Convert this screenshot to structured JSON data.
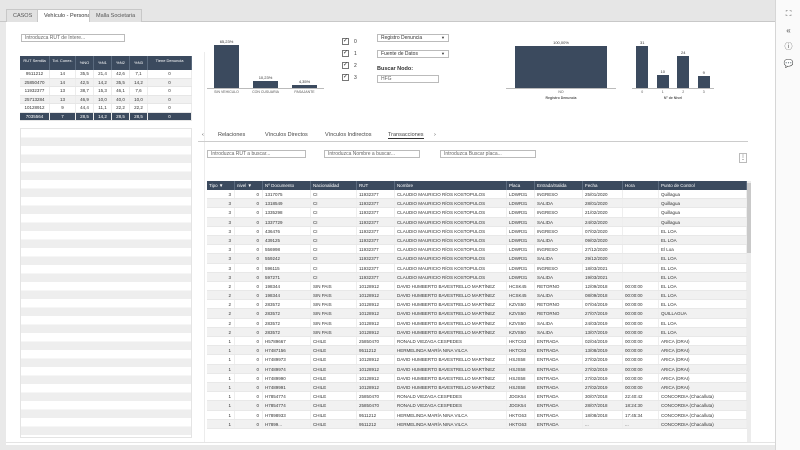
{
  "tabs": [
    {
      "label": "CASOS",
      "active": false
    },
    {
      "label": "Vehículo - Persona",
      "active": true
    },
    {
      "label": "Malla Societaria",
      "active": false
    }
  ],
  "rail_icons": [
    "expand-icon",
    "chevron-left-icon",
    "info-icon",
    "comment-icon"
  ],
  "rut_input_placeholder": "Introduzca RUT de Intere...",
  "left_table": {
    "headers": [
      "RUT Semilla",
      "Tot. Conex.",
      "%NO",
      "%N1",
      "%N2",
      "%N3",
      "Tiene Denuncia"
    ],
    "rows": [
      [
        "9511212",
        "14",
        "35,5",
        "21,4",
        "42,6",
        "7,1",
        "0"
      ],
      [
        "25850470",
        "14",
        "42,5",
        "14,2",
        "35,5",
        "14,2",
        "0"
      ],
      [
        "11932377",
        "13",
        "38,7",
        "15,3",
        "46,1",
        "7,6",
        "0"
      ],
      [
        "25713284",
        "13",
        "46,9",
        "10,0",
        "40,0",
        "10,0",
        "0"
      ],
      [
        "10128912",
        "9",
        "44,4",
        "11,1",
        "22,2",
        "22,2",
        "0"
      ],
      [
        "7035564",
        "7",
        "28,5",
        "14,2",
        "28,5",
        "28,5",
        "0"
      ]
    ],
    "selected_row": 5
  },
  "chart1": {
    "type": "bar",
    "categories": [
      "SIN VEHICULO",
      "CON CUSUARIA",
      "PASAJANTE"
    ],
    "values": [
      65.23,
      10.23,
      4.35
    ],
    "value_labels": [
      "65,23%",
      "10,23%",
      "4,35%"
    ],
    "ylim": [
      0,
      70
    ]
  },
  "checkboxes": [
    {
      "label": "0",
      "checked": true
    },
    {
      "label": "1",
      "checked": true
    },
    {
      "label": "2",
      "checked": true
    },
    {
      "label": "3",
      "checked": true
    }
  ],
  "dropdowns": {
    "registro": "Registro Denuncia",
    "fuente": "Fuente de Datos"
  },
  "buscar": {
    "label": "Buscar Nodo:",
    "value": "HFG"
  },
  "chart2": {
    "type": "bar",
    "categories": [
      "NO"
    ],
    "values": [
      100.0
    ],
    "value_labels": [
      "100,00%"
    ],
    "xlabel": "Registro Denuncia",
    "ylim": [
      0,
      100
    ]
  },
  "chart3": {
    "type": "bar",
    "categories": [
      "0",
      "1",
      "2",
      "3"
    ],
    "values": [
      31,
      10,
      24,
      9
    ],
    "value_labels": [
      "31",
      "10",
      "24",
      "9"
    ],
    "xlabel": "N° de Nivel",
    "ylim": [
      0,
      32
    ]
  },
  "subtabs": [
    {
      "label": "Relaciones",
      "active": false
    },
    {
      "label": "Vínculos Directos",
      "active": false
    },
    {
      "label": "Vínculos Indirectos",
      "active": false
    },
    {
      "label": "Transacciones",
      "active": true
    }
  ],
  "filters": {
    "rut": "Introduzca RUT a buscar...",
    "nombre": "Introduzca Nombre a buscar...",
    "placa": "Introduzca Buscar placa..."
  },
  "main_table": {
    "headers": [
      "Tipo ▼",
      "nivel ▼",
      "Nº Documento",
      "Nacionalidad",
      "RUT",
      "Nombre",
      "Placa",
      "Entrada/Salida",
      "Fecha",
      "Hora",
      "Punto de Control"
    ],
    "rows": [
      [
        "3",
        "0",
        "1317075",
        "CI",
        "11932377",
        "CLAUDIO MAURICIO RÍOS KOSTOPULOS",
        "LDWR31",
        "INGRESO",
        "25/01/2020",
        "",
        "Quillagua"
      ],
      [
        "3",
        "0",
        "1318549",
        "CI",
        "11932377",
        "CLAUDIO MAURICIO RÍOS KOSTOPULOS",
        "LDWR31",
        "SALIDA",
        "28/01/2020",
        "",
        "Quillagua"
      ],
      [
        "3",
        "0",
        "1335298",
        "CI",
        "11932377",
        "CLAUDIO MAURICIO RÍOS KOSTOPULOS",
        "LDWR31",
        "INGRESO",
        "21/02/2020",
        "",
        "Quillagua"
      ],
      [
        "3",
        "0",
        "1337729",
        "CI",
        "11932377",
        "CLAUDIO MAURICIO RÍOS KOSTOPULOS",
        "LDWR31",
        "SALIDA",
        "24/02/2020",
        "",
        "Quillagua"
      ],
      [
        "3",
        "0",
        "436476",
        "CI",
        "11932377",
        "CLAUDIO MAURICIO RÍOS KOSTOPULOS",
        "LDWR31",
        "INGRESO",
        "07/02/2020",
        "",
        "EL LOA"
      ],
      [
        "3",
        "0",
        "439125",
        "CI",
        "11932377",
        "CLAUDIO MAURICIO RÍOS KOSTOPULOS",
        "LDWR31",
        "SALIDA",
        "09/02/2020",
        "",
        "EL LOA"
      ],
      [
        "3",
        "0",
        "556998",
        "CI",
        "11932377",
        "CLAUDIO MAURICIO RÍOS KOSTOPULOS",
        "LDWR31",
        "INGRESO",
        "27/12/2020",
        "",
        "El Loa"
      ],
      [
        "3",
        "0",
        "559242",
        "CI",
        "11932377",
        "CLAUDIO MAURICIO RÍOS KOSTOPULOS",
        "LDWR31",
        "SALIDA",
        "29/12/2020",
        "",
        "EL LOA"
      ],
      [
        "3",
        "0",
        "596115",
        "CI",
        "11932377",
        "CLAUDIO MAURICIO RÍOS KOSTOPULOS",
        "LDWR31",
        "INGRESO",
        "18/03/2021",
        "",
        "EL LOA"
      ],
      [
        "3",
        "0",
        "597271",
        "CI",
        "11932377",
        "CLAUDIO MAURICIO RÍOS KOSTOPULOS",
        "LDWR31",
        "SALIDA",
        "19/03/2021",
        "",
        "EL LOA"
      ],
      [
        "2",
        "0",
        "198344",
        "SIN PAIS",
        "10128912",
        "DAVID HUMBERTO BAVESTRELLO MARTÍNEZ",
        "HCSK45",
        "RETORNO",
        "12/09/2018",
        "00:00:00",
        "EL LOA"
      ],
      [
        "2",
        "0",
        "198344",
        "SIN PAIS",
        "10128912",
        "DAVID HUMBERTO BAVESTRELLO MARTÍNEZ",
        "HCSK45",
        "SALIDA",
        "08/09/2018",
        "00:00:00",
        "EL LOA"
      ],
      [
        "2",
        "0",
        "283572",
        "SIN PAIS",
        "10128912",
        "DAVID HUMBERTO BAVESTRELLO MARTÍNEZ",
        "KZVS50",
        "RETORNO",
        "07/04/2019",
        "00:00:00",
        "EL LOA"
      ],
      [
        "2",
        "0",
        "283572",
        "SIN PAIS",
        "10128912",
        "DAVID HUMBERTO BAVESTRELLO MARTÍNEZ",
        "KZVS50",
        "RETORNO",
        "27/07/2019",
        "00:00:00",
        "QUILLAGUA"
      ],
      [
        "2",
        "0",
        "283572",
        "SIN PAIS",
        "10128912",
        "DAVID HUMBERTO BAVESTRELLO MARTÍNEZ",
        "KZVS50",
        "SALIDA",
        "24/03/2019",
        "00:00:00",
        "EL LOA"
      ],
      [
        "2",
        "0",
        "283572",
        "SIN PAIS",
        "10128912",
        "DAVID HUMBERTO BAVESTRELLO MARTÍNEZ",
        "KZVS50",
        "SALIDA",
        "13/07/2019",
        "00:00:00",
        "EL LOA"
      ],
      [
        "1",
        "0",
        "H5789667",
        "CHILE",
        "25850470",
        "RONALD VIEZAGA CESPEDES",
        "HKTC63",
        "ENTRADA",
        "02/04/2019",
        "00:00:00",
        "ARICA (DRAI)"
      ],
      [
        "1",
        "0",
        "H7487156",
        "CHILE",
        "9511212",
        "HERMELINDA MARÍA NINA VILCA",
        "HKTC63",
        "ENTRADA",
        "13/08/2019",
        "00:00:00",
        "ARICA (DRAI)"
      ],
      [
        "1",
        "0",
        "H7489973",
        "CHILE",
        "10128912",
        "DAVID HUMBERTO BAVESTRELLO MARTÍNEZ",
        "HSJS58",
        "ENTRADA",
        "27/02/2019",
        "00:00:00",
        "ARICA (DRAI)"
      ],
      [
        "1",
        "0",
        "H7489974",
        "CHILE",
        "10128912",
        "DAVID HUMBERTO BAVESTRELLO MARTÍNEZ",
        "HSJS58",
        "ENTRADA",
        "27/02/2019",
        "00:00:00",
        "ARICA (DRAI)"
      ],
      [
        "1",
        "0",
        "H7489990",
        "CHILE",
        "10128912",
        "DAVID HUMBERTO BAVESTRELLO MARTÍNEZ",
        "HSJS58",
        "ENTRADA",
        "27/02/2019",
        "00:00:00",
        "ARICA (DRAI)"
      ],
      [
        "1",
        "0",
        "H7489991",
        "CHILE",
        "10128912",
        "DAVID HUMBERTO BAVESTRELLO MARTÍNEZ",
        "HSJS58",
        "ENTRADA",
        "27/02/2019",
        "00:00:00",
        "ARICA (DRAI)"
      ],
      [
        "1",
        "0",
        "H7854774",
        "CHILE",
        "25850470",
        "RONALD VIEZAGA CESPEDES",
        "JDGK54",
        "ENTRADA",
        "30/07/2018",
        "22:40:42",
        "CONCORDIA (Chacalluta)"
      ],
      [
        "1",
        "0",
        "H7854774",
        "CHILE",
        "25850470",
        "RONALD VIEZAGA CESPEDES",
        "JDGK54",
        "ENTRADA",
        "28/07/2018",
        "18:24:30",
        "CONCORDIA (Chacalluta)"
      ],
      [
        "1",
        "0",
        "H7898933",
        "CHILE",
        "9511212",
        "HERMELINDA MARÍA NINA VILCA",
        "HKTG63",
        "ENTRADA",
        "18/08/2018",
        "17:45:34",
        "CONCORDIA (Chacalluta)"
      ],
      [
        "1",
        "0",
        "H7899...",
        "CHILE",
        "9511212",
        "HERMELINDA MARÍA NINA VILCA",
        "HKTG63",
        "ENTRADA",
        "...",
        "...",
        "CONCORDIA (Chacalluta)"
      ]
    ]
  },
  "kebab_icon": "more-vertical-icon"
}
